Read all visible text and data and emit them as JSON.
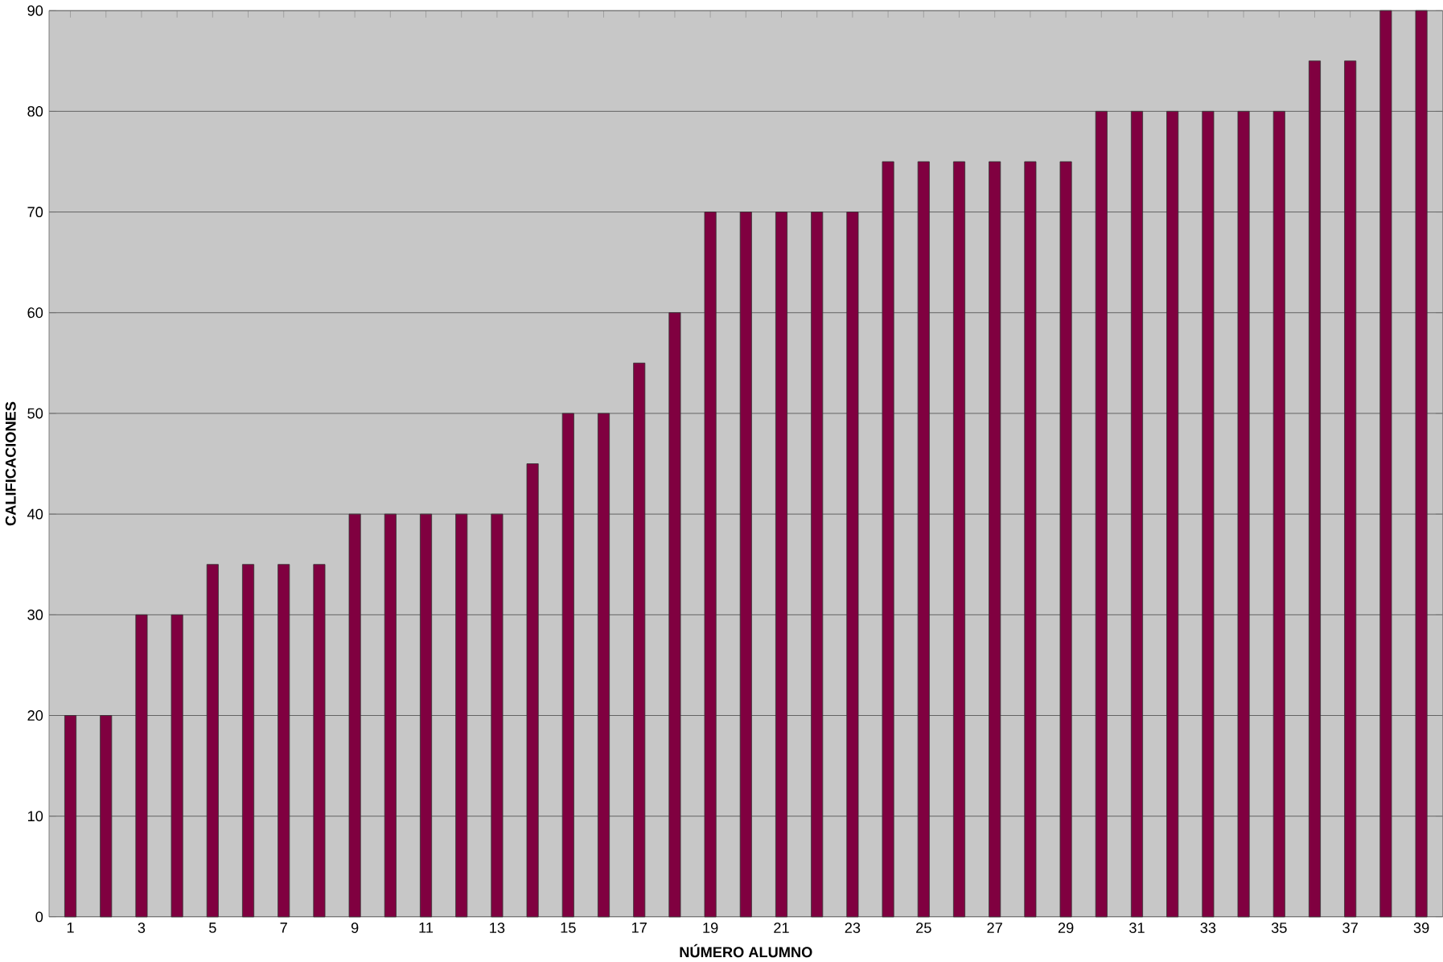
{
  "chart_data": {
    "type": "bar",
    "xlabel": "NÚMERO ALUMNO",
    "ylabel": "CALIFICACIONES",
    "categories": [
      "1",
      null,
      "3",
      null,
      "5",
      null,
      "7",
      null,
      "9",
      null,
      "11",
      null,
      "13",
      null,
      "15",
      null,
      "17",
      null,
      "19",
      null,
      "21",
      null,
      "23",
      null,
      "25",
      null,
      "27",
      null,
      "29",
      null,
      "31",
      null,
      "33",
      null,
      "35",
      null,
      "37",
      null,
      "39"
    ],
    "values": [
      20,
      20,
      30,
      30,
      35,
      35,
      35,
      35,
      40,
      40,
      40,
      40,
      40,
      45,
      50,
      50,
      55,
      60,
      70,
      70,
      70,
      70,
      70,
      75,
      75,
      75,
      75,
      75,
      75,
      80,
      80,
      80,
      80,
      80,
      80,
      85,
      85,
      90,
      90
    ],
    "color": "#800040",
    "ylim": [
      0,
      90
    ],
    "yticks": [
      0,
      10,
      20,
      30,
      40,
      50,
      60,
      70,
      80,
      90
    ],
    "grid": "y"
  }
}
